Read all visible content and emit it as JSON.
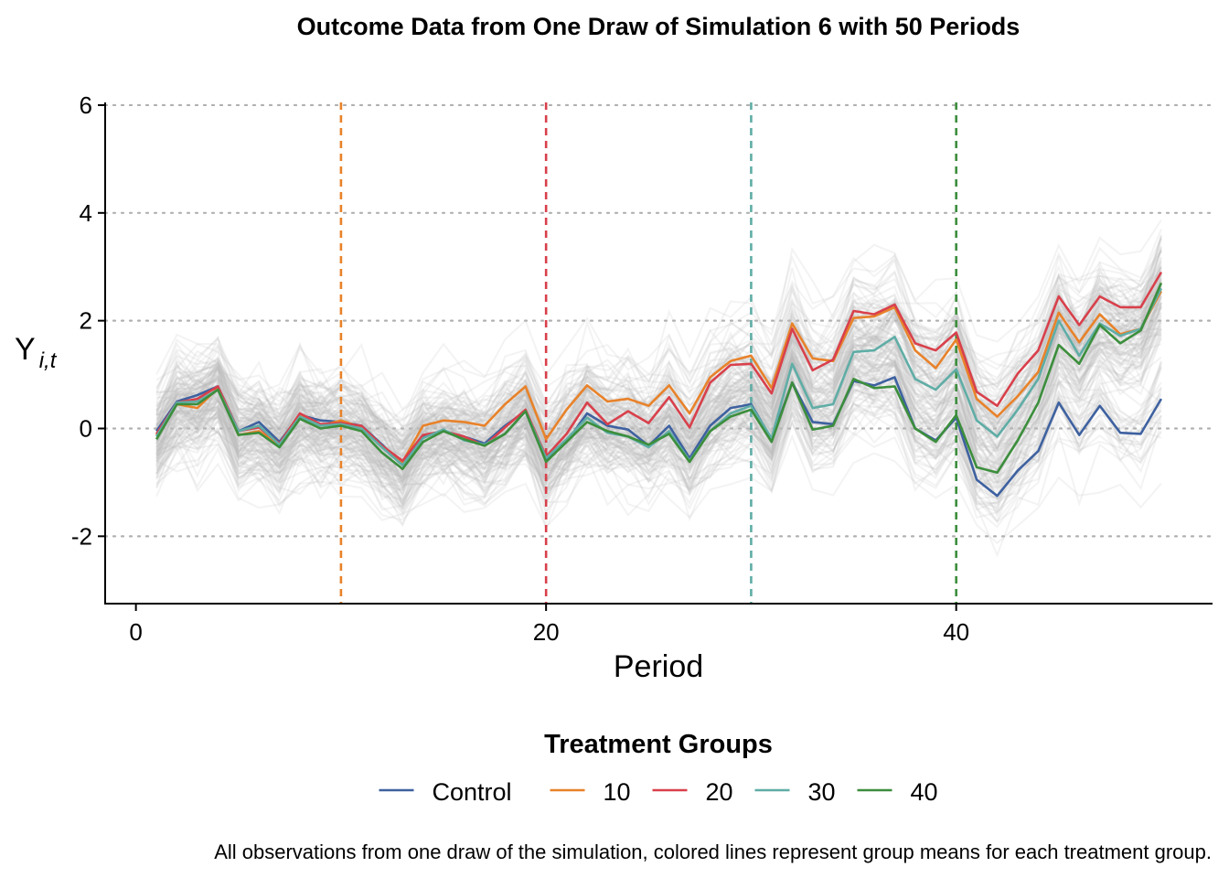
{
  "chart_data": {
    "type": "line",
    "title": "Outcome Data from One Draw of Simulation 6 with 50 Periods",
    "xlabel": "Period",
    "ylabel": "Y",
    "ylabel_subscript": "i,t",
    "xlim": [
      -1.5,
      52.5
    ],
    "ylim": [
      -3.25,
      6.05
    ],
    "x_ticks": [
      0,
      20,
      40
    ],
    "y_ticks": [
      6,
      4,
      2,
      0,
      -2
    ],
    "y_tick_labels": [
      "6",
      "4",
      "2",
      "0",
      "-2"
    ],
    "grid": "horizontal dotted",
    "treatment_lines": [
      {
        "x": 10,
        "color": "#E8822A"
      },
      {
        "x": 20,
        "color": "#D8404B"
      },
      {
        "x": 30,
        "color": "#5FADA6"
      },
      {
        "x": 40,
        "color": "#3C8E3C"
      }
    ],
    "background_lines": {
      "description_visible": false,
      "color": "#bdbdbd",
      "opacity": 0.18
    },
    "x": [
      1,
      2,
      3,
      4,
      5,
      6,
      7,
      8,
      9,
      10,
      11,
      12,
      13,
      14,
      15,
      16,
      17,
      18,
      19,
      20,
      21,
      22,
      23,
      24,
      25,
      26,
      27,
      28,
      29,
      30,
      31,
      32,
      33,
      34,
      35,
      36,
      37,
      38,
      39,
      40,
      41,
      42,
      43,
      44,
      45,
      46,
      47,
      48,
      49,
      50
    ],
    "series": [
      {
        "name": "Control",
        "color": "#3E61A0",
        "values": [
          -0.05,
          0.5,
          0.62,
          0.78,
          -0.05,
          0.12,
          -0.25,
          0.25,
          0.15,
          0.12,
          0.05,
          -0.3,
          -0.68,
          -0.15,
          -0.05,
          -0.15,
          -0.28,
          0.05,
          0.32,
          -0.6,
          -0.25,
          0.28,
          0.05,
          -0.02,
          -0.32,
          0.05,
          -0.55,
          0.05,
          0.38,
          0.45,
          -0.2,
          0.85,
          0.12,
          0.08,
          0.88,
          0.8,
          0.95,
          0.0,
          -0.22,
          0.2,
          -0.95,
          -1.25,
          -0.78,
          -0.42,
          0.48,
          -0.12,
          0.42,
          -0.08,
          -0.1,
          0.55
        ]
      },
      {
        "name": "10",
        "color": "#E8822A",
        "values": [
          -0.12,
          0.45,
          0.38,
          0.75,
          -0.12,
          -0.05,
          -0.3,
          0.25,
          0.05,
          0.15,
          0.02,
          -0.35,
          -0.62,
          0.05,
          0.15,
          0.12,
          0.05,
          0.45,
          0.78,
          -0.2,
          0.35,
          0.8,
          0.5,
          0.55,
          0.42,
          0.8,
          0.28,
          0.95,
          1.25,
          1.35,
          0.75,
          1.95,
          1.3,
          1.25,
          2.05,
          2.08,
          2.25,
          1.45,
          1.12,
          1.65,
          0.55,
          0.22,
          0.6,
          1.05,
          2.15,
          1.6,
          2.12,
          1.75,
          1.85,
          2.55
        ]
      },
      {
        "name": "20",
        "color": "#D8404B",
        "values": [
          -0.1,
          0.48,
          0.55,
          0.78,
          -0.05,
          0.02,
          -0.28,
          0.28,
          0.08,
          0.1,
          0.05,
          -0.32,
          -0.6,
          -0.12,
          -0.05,
          -0.15,
          -0.32,
          0.02,
          0.35,
          -0.52,
          -0.1,
          0.48,
          0.08,
          0.32,
          0.1,
          0.58,
          0.02,
          0.85,
          1.18,
          1.2,
          0.65,
          1.85,
          1.08,
          1.28,
          2.18,
          2.12,
          2.3,
          1.58,
          1.45,
          1.78,
          0.68,
          0.42,
          1.02,
          1.45,
          2.45,
          1.92,
          2.45,
          2.25,
          2.25,
          2.9
        ]
      },
      {
        "name": "30",
        "color": "#5FADA6",
        "values": [
          -0.15,
          0.48,
          0.5,
          0.72,
          -0.05,
          0.05,
          -0.3,
          0.22,
          0.05,
          0.08,
          0.0,
          -0.35,
          -0.68,
          -0.18,
          -0.02,
          -0.22,
          -0.3,
          -0.1,
          0.32,
          -0.55,
          -0.2,
          0.2,
          -0.08,
          -0.15,
          -0.35,
          -0.05,
          -0.6,
          -0.05,
          0.28,
          0.42,
          -0.18,
          1.2,
          0.38,
          0.45,
          1.42,
          1.45,
          1.7,
          0.92,
          0.72,
          1.1,
          0.15,
          -0.15,
          0.35,
          0.92,
          2.0,
          1.35,
          1.95,
          1.72,
          1.85,
          2.6
        ]
      },
      {
        "name": "40",
        "color": "#3C8E3C",
        "values": [
          -0.2,
          0.45,
          0.45,
          0.72,
          -0.12,
          -0.08,
          -0.35,
          0.18,
          0.0,
          0.05,
          -0.05,
          -0.45,
          -0.75,
          -0.25,
          -0.05,
          -0.2,
          -0.32,
          -0.1,
          0.32,
          -0.62,
          -0.25,
          0.12,
          -0.05,
          -0.15,
          -0.3,
          -0.1,
          -0.62,
          -0.05,
          0.22,
          0.35,
          -0.25,
          0.85,
          -0.02,
          0.05,
          0.92,
          0.75,
          0.78,
          0.0,
          -0.25,
          0.25,
          -0.72,
          -0.82,
          -0.22,
          0.48,
          1.55,
          1.2,
          1.92,
          1.58,
          1.82,
          2.7
        ]
      }
    ],
    "legend": {
      "title": "Treatment Groups",
      "position": "bottom",
      "entries": [
        "Control",
        "10",
        "20",
        "30",
        "40"
      ]
    },
    "caption": "All observations from one draw of the simulation, colored lines represent group means for each treatment group."
  }
}
